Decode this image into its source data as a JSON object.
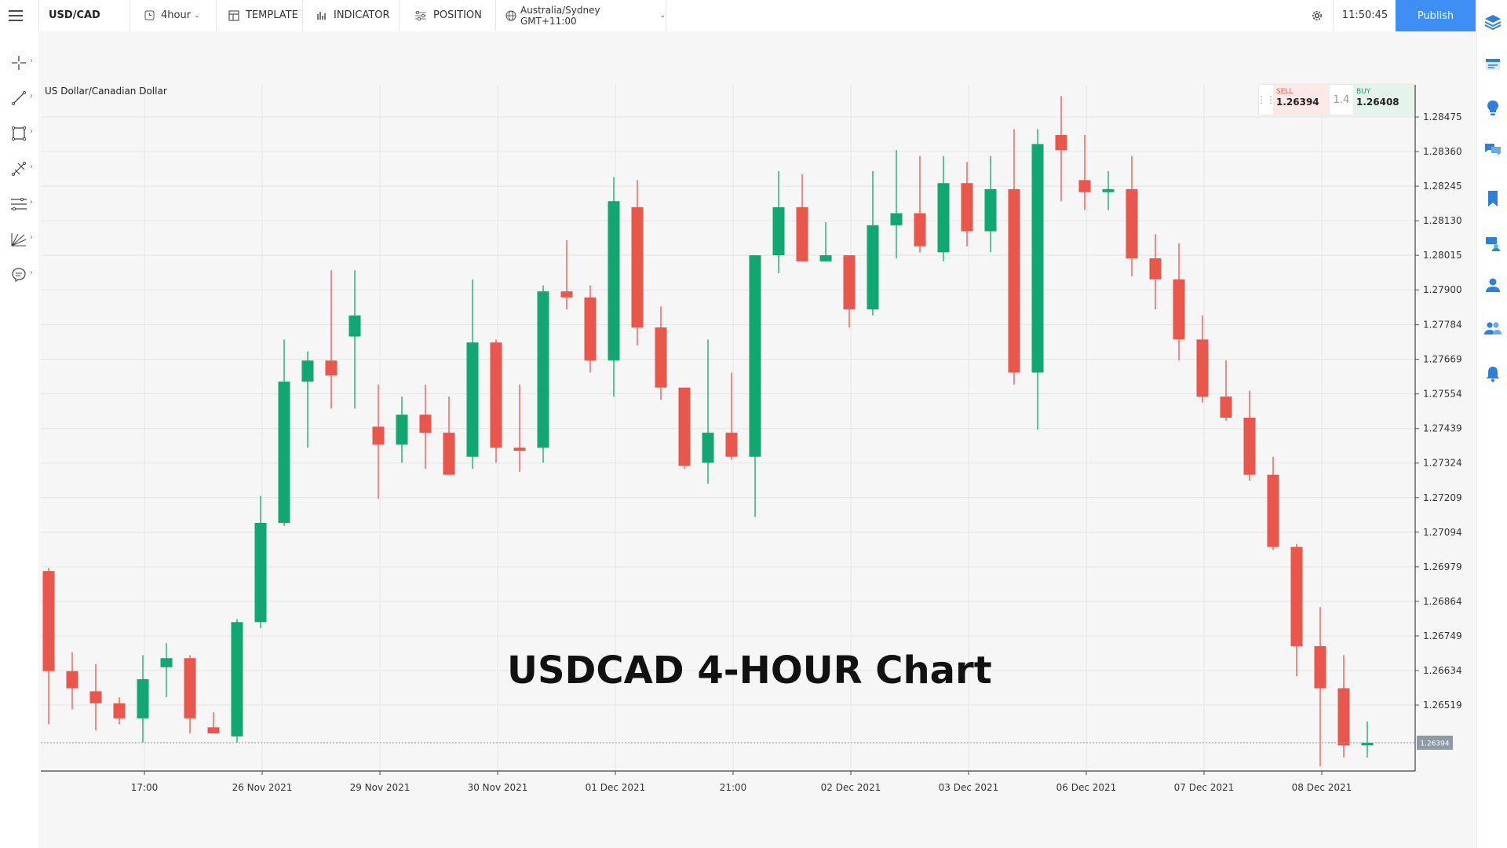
{
  "toolbar": {
    "symbol": "USD/CAD",
    "interval": "4hour",
    "template_label": "TEMPLATE",
    "indicator_label": "INDICATOR",
    "position_label": "POSITION",
    "timezone": "Australia/Sydney GMT+11:00",
    "clock": "11:50:45",
    "publish_label": "Publish"
  },
  "left_tools": [
    "crosshair-tool",
    "trend-line-tool",
    "rectangle-tool",
    "pitchfork-tool",
    "fibonacci-tool",
    "gann-tool",
    "annotation-tool"
  ],
  "right_panel": [
    "layers-icon",
    "watchlist-icon",
    "ideas-icon",
    "messages-icon",
    "bookmark-icon",
    "profile-settings-icon",
    "user-icon",
    "community-icon",
    "notifications-icon"
  ],
  "pair_name": "US Dollar/Canadian Dollar",
  "trade": {
    "sell_label": "SELL",
    "sell_price": "1.26394",
    "spread": "1.4",
    "buy_label": "BUY",
    "buy_price": "1.26408"
  },
  "overlay_title": "USDCAD 4-HOUR Chart",
  "colors": {
    "up": "#12a672",
    "down": "#e8564c",
    "grid": "#e6e6e6",
    "accent": "#3d8ef5",
    "price_tag": "#8e9aa6"
  },
  "chart_data": {
    "type": "candlestick",
    "title": "USDCAD 4-HOUR Chart",
    "ylim": [
      1.2625,
      1.2856
    ],
    "y_ticks": [
      "1.28475",
      "1.28360",
      "1.28245",
      "1.28130",
      "1.28015",
      "1.27900",
      "1.27784",
      "1.27669",
      "1.27554",
      "1.27439",
      "1.27324",
      "1.27209",
      "1.27094",
      "1.26979",
      "1.26864",
      "1.26749",
      "1.26634",
      "1.26519"
    ],
    "x_ticks": [
      {
        "label": "17:00",
        "index": 4
      },
      {
        "label": "26 Nov 2021",
        "index": 9
      },
      {
        "label": "29 Nov 2021",
        "index": 14
      },
      {
        "label": "30 Nov 2021",
        "index": 19
      },
      {
        "label": "01 Dec 2021",
        "index": 24
      },
      {
        "label": "21:00",
        "index": 29
      },
      {
        "label": "02 Dec 2021",
        "index": 34
      },
      {
        "label": "03 Dec 2021",
        "index": 39
      },
      {
        "label": "06 Dec 2021",
        "index": 44
      },
      {
        "label": "07 Dec 2021",
        "index": 49
      },
      {
        "label": "08 Dec 2021",
        "index": 54
      }
    ],
    "last_price": "1.26394",
    "series": [
      {
        "o": 1.26965,
        "h": 1.26975,
        "l": 1.26455,
        "c": 1.26632
      },
      {
        "o": 1.26632,
        "h": 1.26695,
        "l": 1.26505,
        "c": 1.26575
      },
      {
        "o": 1.26565,
        "h": 1.26655,
        "l": 1.26435,
        "c": 1.26525
      },
      {
        "o": 1.26525,
        "h": 1.26545,
        "l": 1.26455,
        "c": 1.26475
      },
      {
        "o": 1.26475,
        "h": 1.26685,
        "l": 1.26395,
        "c": 1.26605
      },
      {
        "o": 1.26645,
        "h": 1.26725,
        "l": 1.26545,
        "c": 1.26675
      },
      {
        "o": 1.26675,
        "h": 1.26685,
        "l": 1.26425,
        "c": 1.26475
      },
      {
        "o": 1.26445,
        "h": 1.26495,
        "l": 1.26425,
        "c": 1.26425
      },
      {
        "o": 1.26415,
        "h": 1.26805,
        "l": 1.26395,
        "c": 1.26795
      },
      {
        "o": 1.26795,
        "h": 1.27215,
        "l": 1.26775,
        "c": 1.27125
      },
      {
        "o": 1.27125,
        "h": 1.27735,
        "l": 1.27115,
        "c": 1.27595
      },
      {
        "o": 1.27595,
        "h": 1.27695,
        "l": 1.27375,
        "c": 1.27665
      },
      {
        "o": 1.27665,
        "h": 1.27965,
        "l": 1.27505,
        "c": 1.27615
      },
      {
        "o": 1.27745,
        "h": 1.27965,
        "l": 1.27505,
        "c": 1.27815
      },
      {
        "o": 1.27445,
        "h": 1.27585,
        "l": 1.27205,
        "c": 1.27385
      },
      {
        "o": 1.27385,
        "h": 1.27545,
        "l": 1.27325,
        "c": 1.27485
      },
      {
        "o": 1.27485,
        "h": 1.27585,
        "l": 1.27305,
        "c": 1.27425
      },
      {
        "o": 1.27425,
        "h": 1.27545,
        "l": 1.27285,
        "c": 1.27285
      },
      {
        "o": 1.27345,
        "h": 1.27935,
        "l": 1.27305,
        "c": 1.27725
      },
      {
        "o": 1.27725,
        "h": 1.27735,
        "l": 1.27325,
        "c": 1.27375
      },
      {
        "o": 1.27375,
        "h": 1.27585,
        "l": 1.27295,
        "c": 1.27365
      },
      {
        "o": 1.27375,
        "h": 1.27915,
        "l": 1.27325,
        "c": 1.27895
      },
      {
        "o": 1.27895,
        "h": 1.28065,
        "l": 1.27835,
        "c": 1.27875
      },
      {
        "o": 1.27875,
        "h": 1.27915,
        "l": 1.27625,
        "c": 1.27665
      },
      {
        "o": 1.27665,
        "h": 1.28275,
        "l": 1.27545,
        "c": 1.28195
      },
      {
        "o": 1.28175,
        "h": 1.28265,
        "l": 1.27715,
        "c": 1.27775
      },
      {
        "o": 1.27775,
        "h": 1.27845,
        "l": 1.27535,
        "c": 1.27575
      },
      {
        "o": 1.27575,
        "h": 1.27575,
        "l": 1.27305,
        "c": 1.27315
      },
      {
        "o": 1.27325,
        "h": 1.27735,
        "l": 1.27255,
        "c": 1.27425
      },
      {
        "o": 1.27425,
        "h": 1.27625,
        "l": 1.27335,
        "c": 1.27345
      },
      {
        "o": 1.27345,
        "h": 1.28015,
        "l": 1.27145,
        "c": 1.28015
      },
      {
        "o": 1.28015,
        "h": 1.28295,
        "l": 1.27955,
        "c": 1.28175
      },
      {
        "o": 1.28175,
        "h": 1.28285,
        "l": 1.27995,
        "c": 1.27995
      },
      {
        "o": 1.27995,
        "h": 1.28125,
        "l": 1.27995,
        "c": 1.28015
      },
      {
        "o": 1.28015,
        "h": 1.28015,
        "l": 1.27775,
        "c": 1.27835
      },
      {
        "o": 1.27835,
        "h": 1.28295,
        "l": 1.27815,
        "c": 1.28115
      },
      {
        "o": 1.28115,
        "h": 1.28365,
        "l": 1.28005,
        "c": 1.28155
      },
      {
        "o": 1.28155,
        "h": 1.28345,
        "l": 1.28025,
        "c": 1.28045
      },
      {
        "o": 1.28025,
        "h": 1.28345,
        "l": 1.27995,
        "c": 1.28255
      },
      {
        "o": 1.28255,
        "h": 1.28325,
        "l": 1.28045,
        "c": 1.28095
      },
      {
        "o": 1.28095,
        "h": 1.28345,
        "l": 1.28025,
        "c": 1.28235
      },
      {
        "o": 1.28235,
        "h": 1.28435,
        "l": 1.27585,
        "c": 1.27625
      },
      {
        "o": 1.27625,
        "h": 1.28435,
        "l": 1.27435,
        "c": 1.28385
      },
      {
        "o": 1.28415,
        "h": 1.28545,
        "l": 1.28195,
        "c": 1.28365
      },
      {
        "o": 1.28265,
        "h": 1.28415,
        "l": 1.28165,
        "c": 1.28225
      },
      {
        "o": 1.28225,
        "h": 1.28295,
        "l": 1.28165,
        "c": 1.28235
      },
      {
        "o": 1.28235,
        "h": 1.28345,
        "l": 1.27945,
        "c": 1.28005
      },
      {
        "o": 1.28005,
        "h": 1.28085,
        "l": 1.27835,
        "c": 1.27935
      },
      {
        "o": 1.27935,
        "h": 1.28055,
        "l": 1.27665,
        "c": 1.27735
      },
      {
        "o": 1.27735,
        "h": 1.27815,
        "l": 1.27525,
        "c": 1.27545
      },
      {
        "o": 1.27545,
        "h": 1.27665,
        "l": 1.27465,
        "c": 1.27475
      },
      {
        "o": 1.27475,
        "h": 1.27565,
        "l": 1.27265,
        "c": 1.27285
      },
      {
        "o": 1.27285,
        "h": 1.27345,
        "l": 1.27035,
        "c": 1.27045
      },
      {
        "o": 1.27045,
        "h": 1.27055,
        "l": 1.26615,
        "c": 1.26715
      },
      {
        "o": 1.26715,
        "h": 1.26845,
        "l": 1.26315,
        "c": 1.26575
      },
      {
        "o": 1.26575,
        "h": 1.26685,
        "l": 1.26345,
        "c": 1.26385
      },
      {
        "o": 1.26385,
        "h": 1.26465,
        "l": 1.26345,
        "c": 1.26394
      }
    ]
  }
}
